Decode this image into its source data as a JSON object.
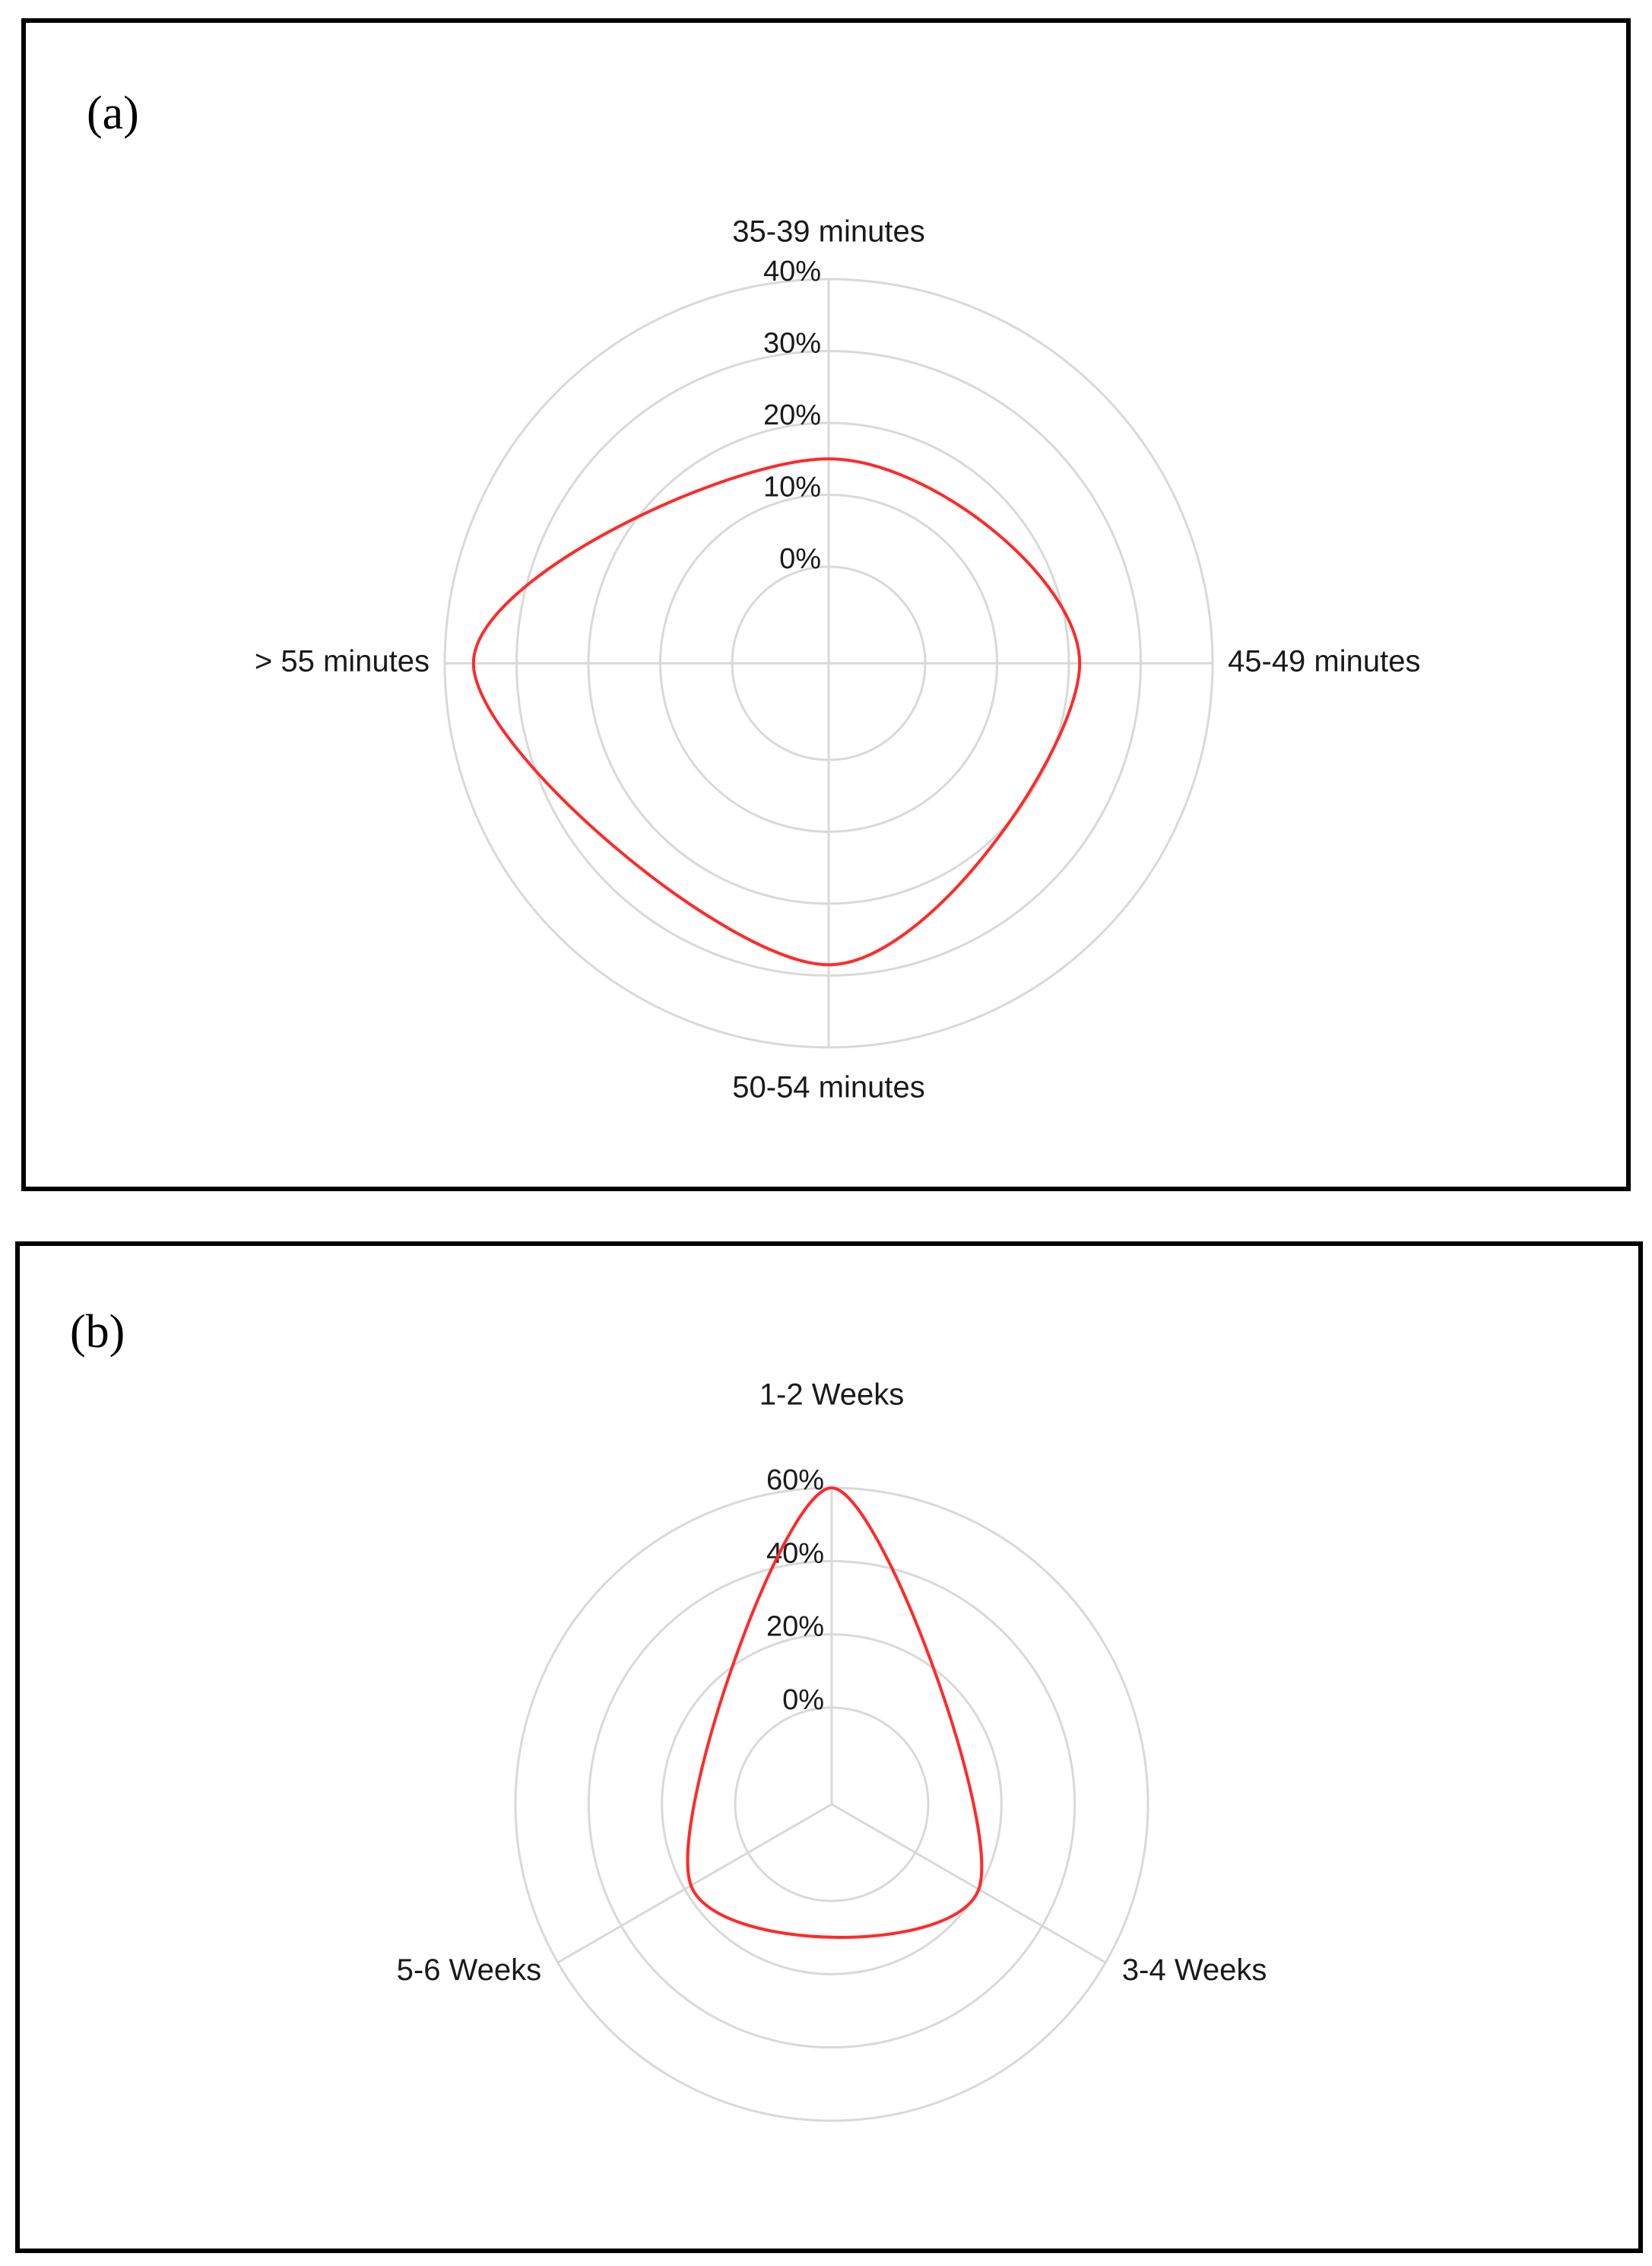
{
  "panels": {
    "a": {
      "label": "(a)"
    },
    "b": {
      "label": "(b)"
    }
  },
  "chart_data": [
    {
      "type": "radar",
      "panel": "(a)",
      "categories": [
        "35-39 minutes",
        "45-49 minutes",
        "50-54 minutes",
        "> 55 minutes"
      ],
      "series": [
        {
          "values": [
            15,
            21.5,
            28.5,
            36
          ],
          "color": "#ff2a2a"
        }
      ],
      "r_ticks": [
        "0%",
        "10%",
        "20%",
        "30%",
        "40%"
      ],
      "r_range": [
        0,
        40
      ],
      "grid": true,
      "line_style": "smooth"
    },
    {
      "type": "radar",
      "panel": "(b)",
      "categories": [
        "1-2 Weeks",
        "3-4 Weeks",
        "5-6 Weeks"
      ],
      "series": [
        {
          "values": [
            60,
            20,
            18
          ],
          "color": "#ff2a2a"
        }
      ],
      "r_ticks": [
        "0%",
        "20%",
        "40%",
        "60%"
      ],
      "r_range": [
        0,
        60
      ],
      "grid": true,
      "line_style": "smooth"
    }
  ]
}
